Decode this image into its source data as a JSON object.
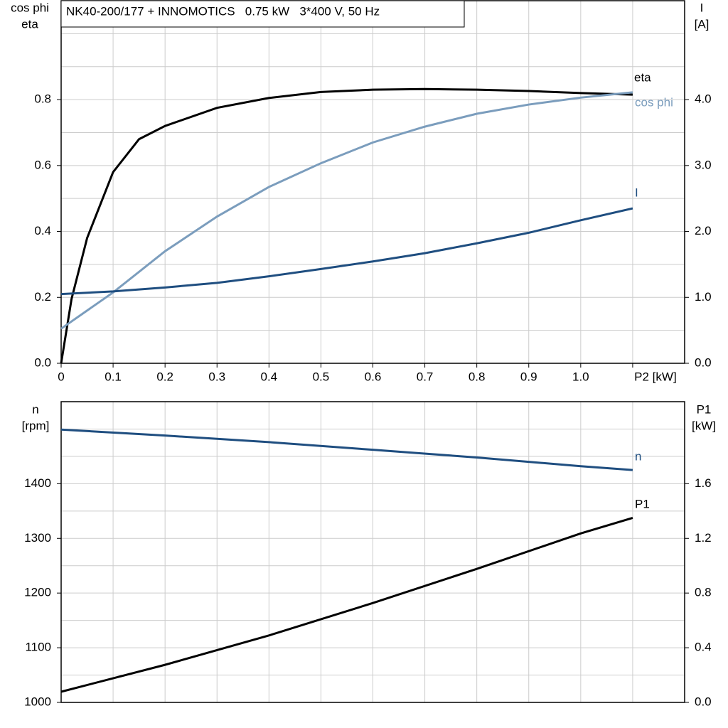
{
  "chart_data": [
    {
      "type": "line",
      "title": "NK40-200/177 + INNOMOTICS   0.75 kW   3*400 V, 50 Hz",
      "ylabel": [
        "cos phi",
        "eta"
      ],
      "y2label": [
        "I",
        "[A]"
      ],
      "xlim": [
        0,
        1.2
      ],
      "xticks": [
        0,
        0.1,
        0.2,
        0.3,
        0.4,
        0.5,
        0.6,
        0.7,
        0.8,
        0.9,
        {
          "value": 1.0,
          "label": "1.0"
        },
        {
          "value": 1.1,
          "label": "P2 [kW]"
        }
      ],
      "ylim": [
        0,
        1.1
      ],
      "yticks": [
        {
          "value": 0,
          "label": "0.0"
        },
        0.2,
        0.4,
        0.6,
        0.8
      ],
      "minor_yticks": [
        0.1,
        0.3,
        0.5,
        0.7,
        0.9,
        1.0
      ],
      "y2lim": [
        0,
        5.5
      ],
      "y2ticks": [
        {
          "value": 0,
          "label": "0.0"
        },
        {
          "value": 1,
          "label": "1.0"
        },
        {
          "value": 2,
          "label": "2.0"
        },
        {
          "value": 3,
          "label": "3.0"
        },
        {
          "value": 4,
          "label": "4.0"
        }
      ],
      "grid": true,
      "series": [
        {
          "name": "eta",
          "color": "#000000",
          "x": [
            0,
            0.02,
            0.05,
            0.1,
            0.15,
            0.2,
            0.3,
            0.4,
            0.5,
            0.6,
            0.7,
            0.8,
            0.9,
            1.0,
            1.1
          ],
          "values": [
            0,
            0.195,
            0.38,
            0.58,
            0.68,
            0.72,
            0.775,
            0.805,
            0.823,
            0.83,
            0.832,
            0.83,
            0.826,
            0.82,
            0.815
          ]
        },
        {
          "name": "cos phi",
          "color": "#7b9dbd",
          "x": [
            0,
            0.1,
            0.2,
            0.3,
            0.4,
            0.5,
            0.6,
            0.7,
            0.8,
            0.9,
            1.0,
            1.1
          ],
          "values": [
            0.105,
            0.215,
            0.34,
            0.445,
            0.535,
            0.607,
            0.67,
            0.718,
            0.757,
            0.785,
            0.806,
            0.822
          ]
        },
        {
          "name": "I",
          "color": "#1f4e80",
          "axis": "y2",
          "x": [
            0,
            0.1,
            0.2,
            0.3,
            0.4,
            0.5,
            0.6,
            0.7,
            0.8,
            0.9,
            1.0,
            1.1
          ],
          "values": [
            1.05,
            1.09,
            1.15,
            1.22,
            1.32,
            1.43,
            1.545,
            1.67,
            1.82,
            1.98,
            2.17,
            2.35
          ]
        }
      ]
    },
    {
      "type": "line",
      "ylabel": [
        "n",
        "[rpm]"
      ],
      "y2label": [
        "P1",
        "[kW]"
      ],
      "xlim": [
        0,
        1.2
      ],
      "xgrid": [
        0.1,
        0.2,
        0.3,
        0.4,
        0.5,
        0.6,
        0.7,
        0.8,
        0.9,
        1.0,
        1.1
      ],
      "ylim": [
        1000,
        1550
      ],
      "yticks": [
        1000,
        1100,
        1200,
        1300,
        1400
      ],
      "minor_yticks": [
        1050,
        1150,
        1250,
        1350,
        1450,
        1500
      ],
      "y2lim": [
        0,
        2.2
      ],
      "y2ticks": [
        {
          "value": 0,
          "label": "0.0"
        },
        0.4,
        0.8,
        1.2,
        1.6
      ],
      "grid": true,
      "series": [
        {
          "name": "n",
          "color": "#1f4e80",
          "x": [
            0,
            0.2,
            0.4,
            0.6,
            0.8,
            1.0,
            1.1
          ],
          "values": [
            1499,
            1488,
            1476,
            1462,
            1448,
            1432,
            1425
          ]
        },
        {
          "name": "P1",
          "color": "#000000",
          "axis": "y2",
          "x": [
            0,
            0.2,
            0.4,
            0.6,
            0.8,
            1.0,
            1.1
          ],
          "values": [
            0.078,
            0.275,
            0.49,
            0.727,
            0.977,
            1.236,
            1.35
          ]
        }
      ]
    }
  ]
}
